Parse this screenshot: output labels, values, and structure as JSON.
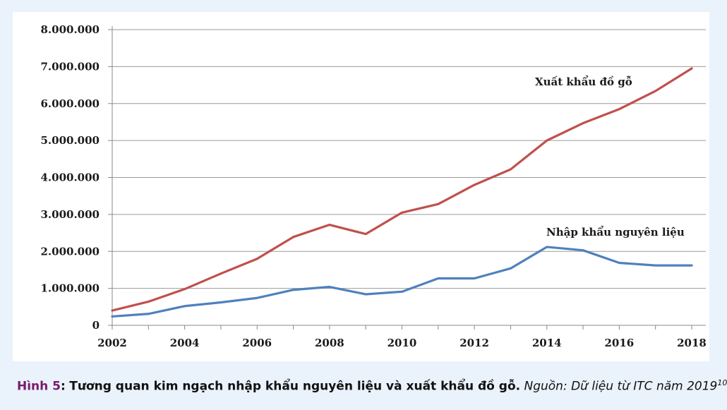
{
  "caption": {
    "label": "Hình 5",
    "colon": ":",
    "title": "Tương quan kim ngạch nhập khẩu nguyên liệu và xuất khẩu đồ gỗ.",
    "source": "Nguồn: Dữ liệu từ ITC năm 2019",
    "footnote": "10"
  },
  "chart_data": {
    "type": "line",
    "title": "",
    "xlabel": "",
    "ylabel": "",
    "x": [
      2002,
      2003,
      2004,
      2005,
      2006,
      2007,
      2008,
      2009,
      2010,
      2011,
      2012,
      2013,
      2014,
      2015,
      2016,
      2017,
      2018
    ],
    "x_tick_labels": [
      "2002",
      "2004",
      "2006",
      "2008",
      "2010",
      "2012",
      "2014",
      "2016",
      "2018"
    ],
    "y_tick_values": [
      0,
      1000000,
      2000000,
      3000000,
      4000000,
      5000000,
      6000000,
      7000000,
      8000000
    ],
    "y_tick_labels": [
      "0",
      "1.000.000",
      "2.000.000",
      "3.000.000",
      "4.000.000",
      "5.000.000",
      "6.000.000",
      "7.000.000",
      "8.000.000"
    ],
    "ylim": [
      0,
      8000000
    ],
    "xlim": [
      2002,
      2018
    ],
    "grid": true,
    "series": [
      {
        "name": "Xuất khẩu đồ gỗ",
        "color": "#c0504d",
        "values": [
          400000,
          640000,
          980000,
          1400000,
          1800000,
          2390000,
          2720000,
          2470000,
          3050000,
          3280000,
          3800000,
          4220000,
          5000000,
          5470000,
          5850000,
          6340000,
          6950000
        ]
      },
      {
        "name": "Nhập khẩu nguyên liệu",
        "color": "#4f81bd",
        "values": [
          240000,
          310000,
          520000,
          620000,
          740000,
          960000,
          1040000,
          840000,
          910000,
          1270000,
          1270000,
          1540000,
          2120000,
          2030000,
          1690000,
          1620000,
          1620000
        ]
      }
    ]
  }
}
